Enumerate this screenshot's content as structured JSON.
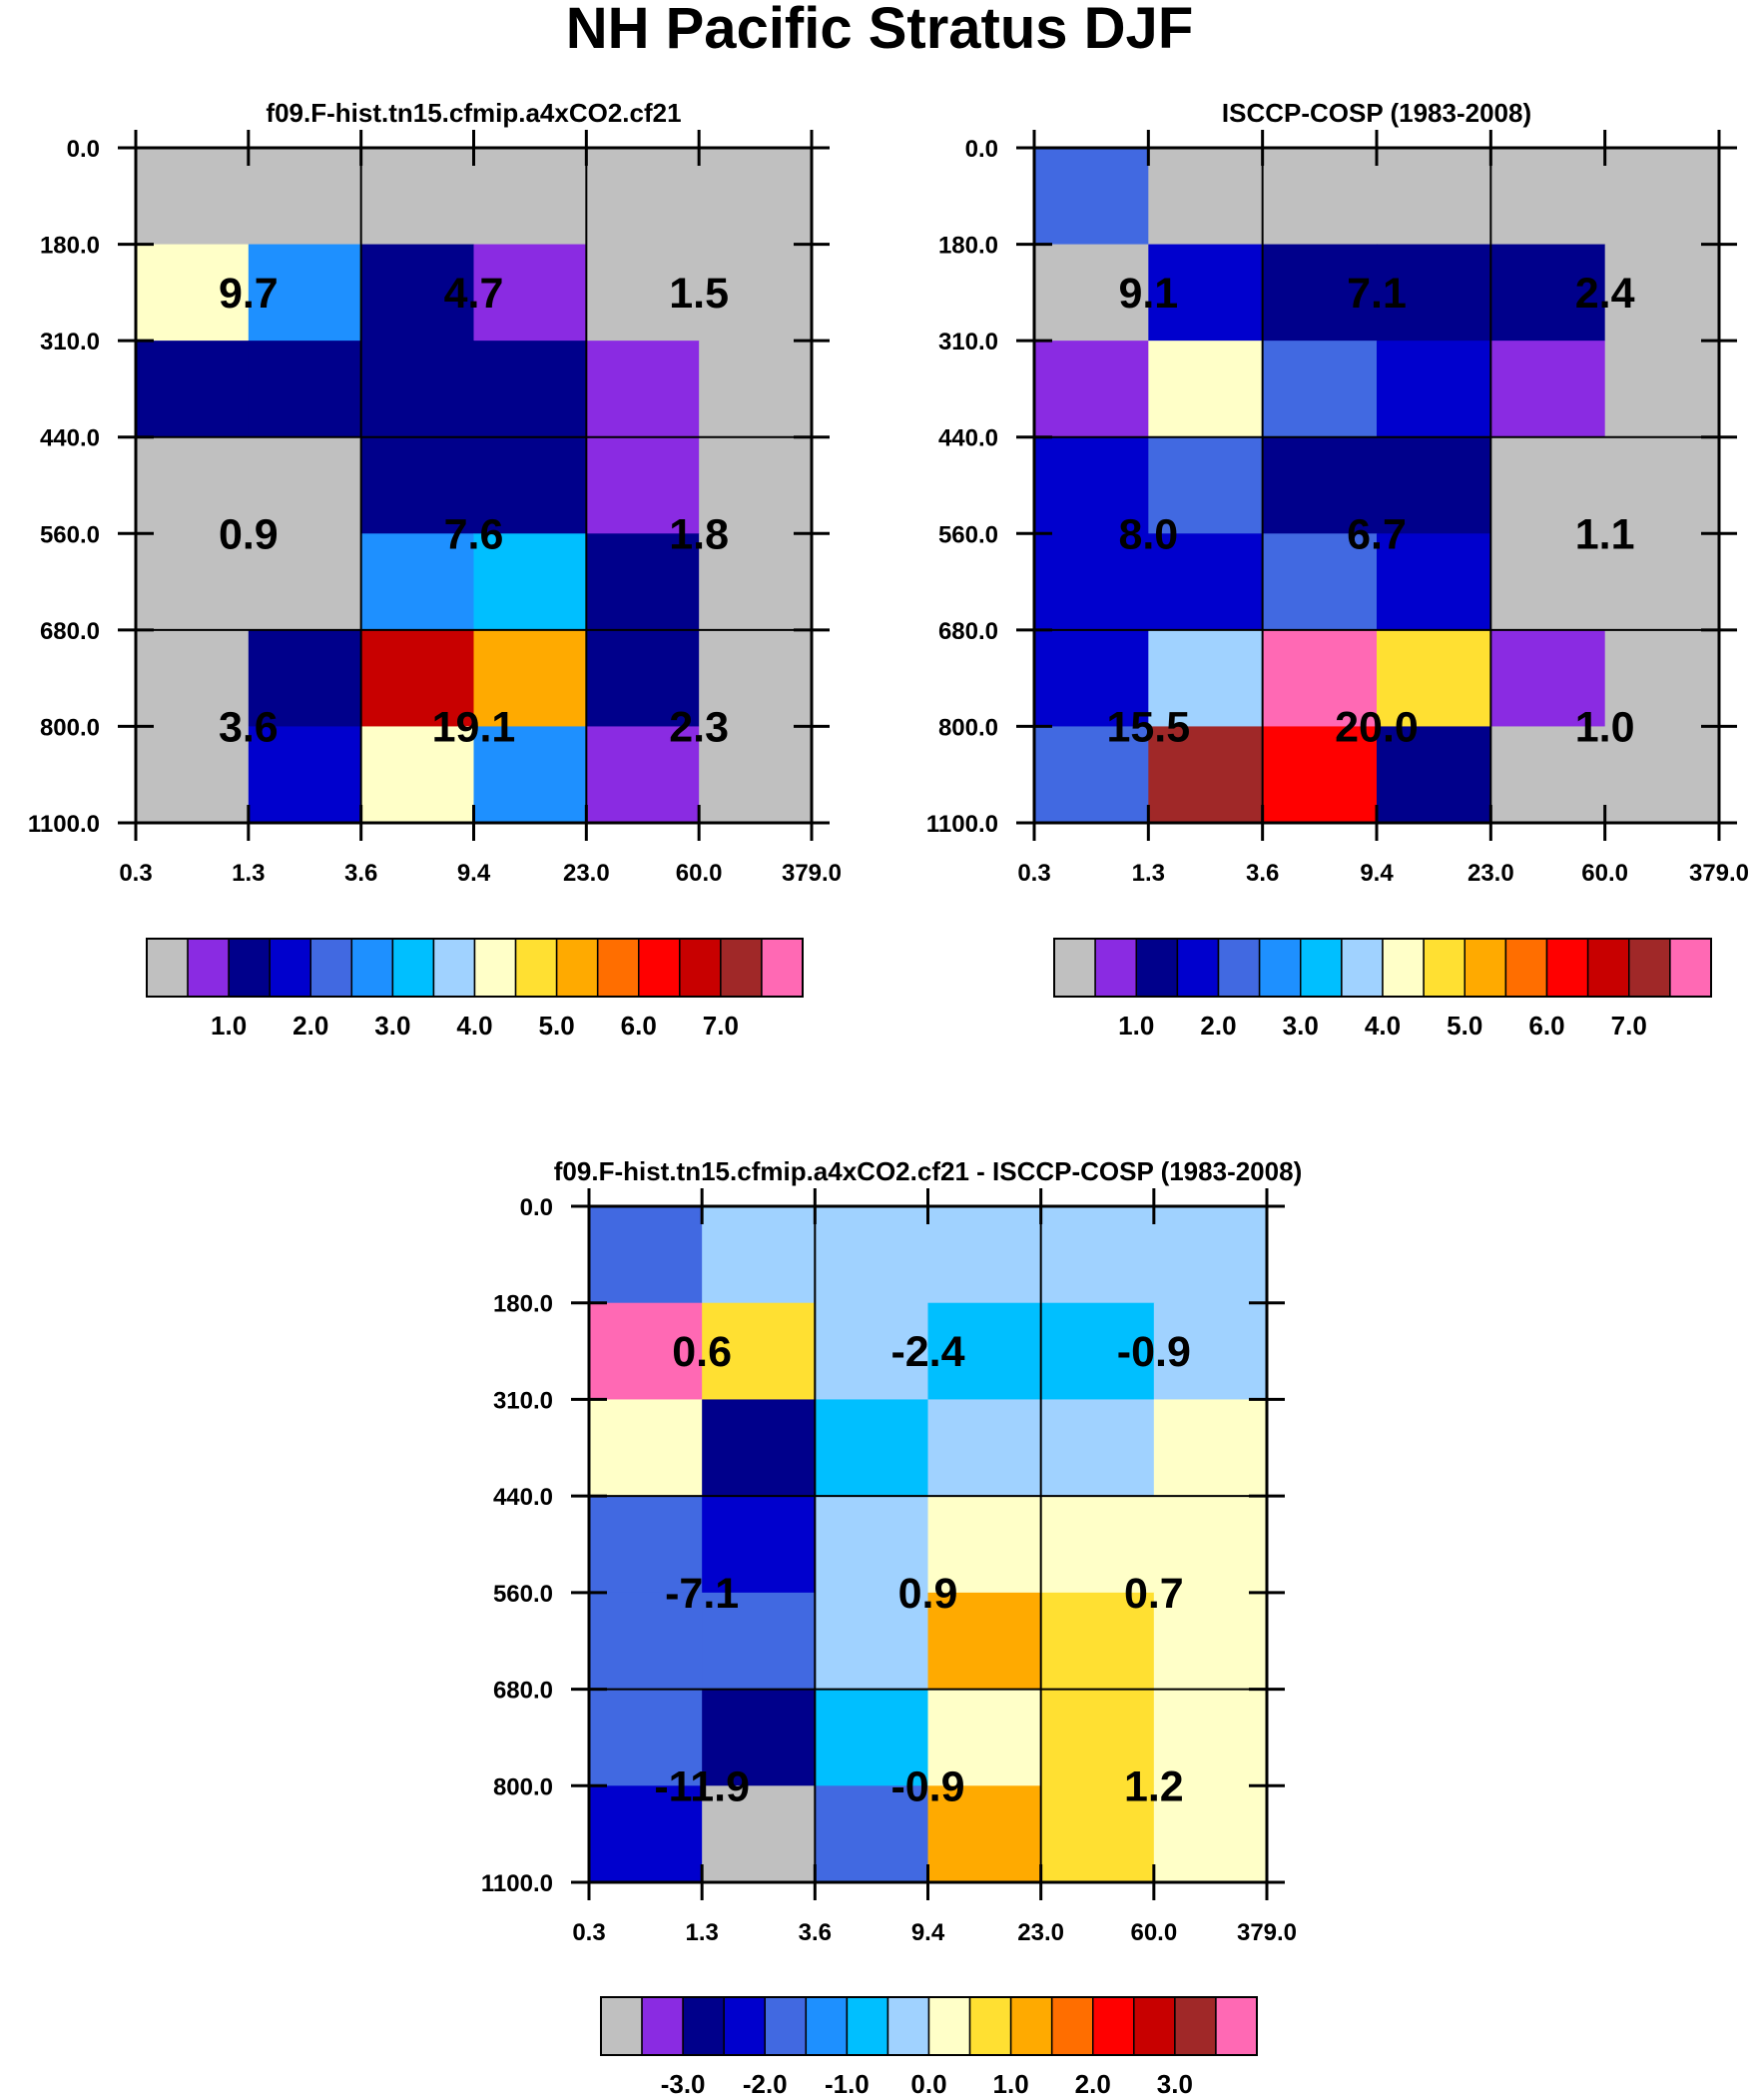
{
  "page_title": "NH Pacific Stratus DJF",
  "axes": {
    "y_ticks": [
      "0.0",
      "180.0",
      "310.0",
      "440.0",
      "560.0",
      "680.0",
      "800.0",
      "1100.0"
    ],
    "x_ticks": [
      "0.3",
      "1.3",
      "3.6",
      "9.4",
      "23.0",
      "60.0",
      "379.0"
    ]
  },
  "colormaps": {
    "abs": [
      "#c0c0c0",
      "#8a2be2",
      "#00008b",
      "#0000cd",
      "#4169e1",
      "#1e90ff",
      "#00bfff",
      "#a0d2ff",
      "#ffffc8",
      "#ffe032",
      "#ffaa00",
      "#ff6e00",
      "#ff0000",
      "#c80000",
      "#a02828",
      "#ff69b4"
    ],
    "diff": [
      "#c0c0c0",
      "#8a2be2",
      "#00008b",
      "#0000cd",
      "#4169e1",
      "#1e90ff",
      "#00bfff",
      "#a0d2ff",
      "#ffffc8",
      "#ffe032",
      "#ffaa00",
      "#ff6e00",
      "#ff0000",
      "#c80000",
      "#a02828",
      "#ff69b4"
    ]
  },
  "chart_data": [
    {
      "type": "heatmap",
      "title": "f09.F-hist.tn15.cfmip.a4xCO2.cf21",
      "colormap": "abs",
      "levels": [
        0.5,
        1.0,
        1.5,
        2.0,
        2.5,
        3.0,
        3.5,
        4.0,
        4.5,
        5.0,
        5.5,
        6.0,
        6.5,
        7.0,
        7.5
      ],
      "colorbar_labels": [
        "1.0",
        "2.0",
        "3.0",
        "4.0",
        "5.0",
        "6.0",
        "7.0"
      ],
      "cells": [
        [
          0.2,
          0.2,
          0.2,
          0.2,
          0.2,
          0.2
        ],
        [
          4.2,
          2.7,
          1.2,
          0.7,
          0.2,
          0.2
        ],
        [
          1.2,
          1.2,
          1.2,
          1.2,
          0.7,
          0.2
        ],
        [
          0.2,
          0.2,
          1.2,
          1.2,
          0.7,
          0.2
        ],
        [
          0.2,
          0.2,
          2.7,
          3.2,
          1.2,
          0.2
        ],
        [
          0.2,
          1.2,
          6.7,
          5.2,
          1.2,
          0.2
        ],
        [
          0.2,
          1.7,
          4.2,
          2.7,
          0.7,
          0.2
        ]
      ],
      "box_values": [
        [
          "9.7",
          "4.7",
          "1.5"
        ],
        [
          "0.9",
          "7.6",
          "1.8"
        ],
        [
          "3.6",
          "19.1",
          "2.3"
        ]
      ]
    },
    {
      "type": "heatmap",
      "title": "ISCCP-COSP (1983-2008)",
      "colormap": "abs",
      "levels": [
        0.5,
        1.0,
        1.5,
        2.0,
        2.5,
        3.0,
        3.5,
        4.0,
        4.5,
        5.0,
        5.5,
        6.0,
        6.5,
        7.0,
        7.5
      ],
      "colorbar_labels": [
        "1.0",
        "2.0",
        "3.0",
        "4.0",
        "5.0",
        "6.0",
        "7.0"
      ],
      "cells": [
        [
          2.2,
          0.2,
          0.2,
          0.2,
          0.2,
          0.2
        ],
        [
          0.2,
          1.7,
          1.2,
          1.2,
          1.2,
          0.2
        ],
        [
          0.7,
          4.2,
          2.2,
          1.7,
          0.7,
          0.2
        ],
        [
          1.7,
          2.2,
          1.2,
          1.2,
          0.2,
          0.2
        ],
        [
          1.7,
          1.7,
          2.2,
          1.7,
          0.2,
          0.2
        ],
        [
          1.7,
          3.7,
          7.7,
          4.7,
          0.7,
          0.2
        ],
        [
          2.2,
          7.2,
          6.2,
          1.2,
          0.2,
          0.2
        ]
      ],
      "box_values": [
        [
          "9.1",
          "7.1",
          "2.4"
        ],
        [
          "8.0",
          "6.7",
          "1.1"
        ],
        [
          "15.5",
          "20.0",
          "1.0"
        ]
      ]
    },
    {
      "type": "heatmap",
      "title": "f09.F-hist.tn15.cfmip.a4xCO2.cf21 - ISCCP-COSP (1983-2008)",
      "colormap": "diff",
      "levels": [
        -3.5,
        -3.0,
        -2.5,
        -2.0,
        -1.5,
        -1.0,
        -0.5,
        0.0,
        0.5,
        1.0,
        1.5,
        2.0,
        2.5,
        3.0,
        3.5
      ],
      "colorbar_labels": [
        "-3.0",
        "-2.0",
        "-1.0",
        "0.0",
        "1.0",
        "2.0",
        "3.0"
      ],
      "cells": [
        [
          -1.7,
          -0.2,
          -0.2,
          -0.2,
          -0.2,
          -0.2
        ],
        [
          3.7,
          0.7,
          -0.2,
          -0.7,
          -0.7,
          -0.2
        ],
        [
          0.2,
          -2.7,
          -0.7,
          -0.2,
          -0.2,
          0.2
        ],
        [
          -1.7,
          -2.2,
          -0.2,
          0.2,
          0.2,
          0.2
        ],
        [
          -1.7,
          -1.7,
          -0.2,
          1.2,
          0.7,
          0.2
        ],
        [
          -1.7,
          -2.7,
          -0.7,
          0.2,
          0.7,
          0.2
        ],
        [
          -2.2,
          -3.7,
          -1.7,
          1.2,
          0.7,
          0.2
        ]
      ],
      "box_values": [
        [
          "0.6",
          "-2.4",
          "-0.9"
        ],
        [
          "-7.1",
          "0.9",
          "0.7"
        ],
        [
          "-11.9",
          "-0.9",
          "1.2"
        ]
      ]
    }
  ]
}
